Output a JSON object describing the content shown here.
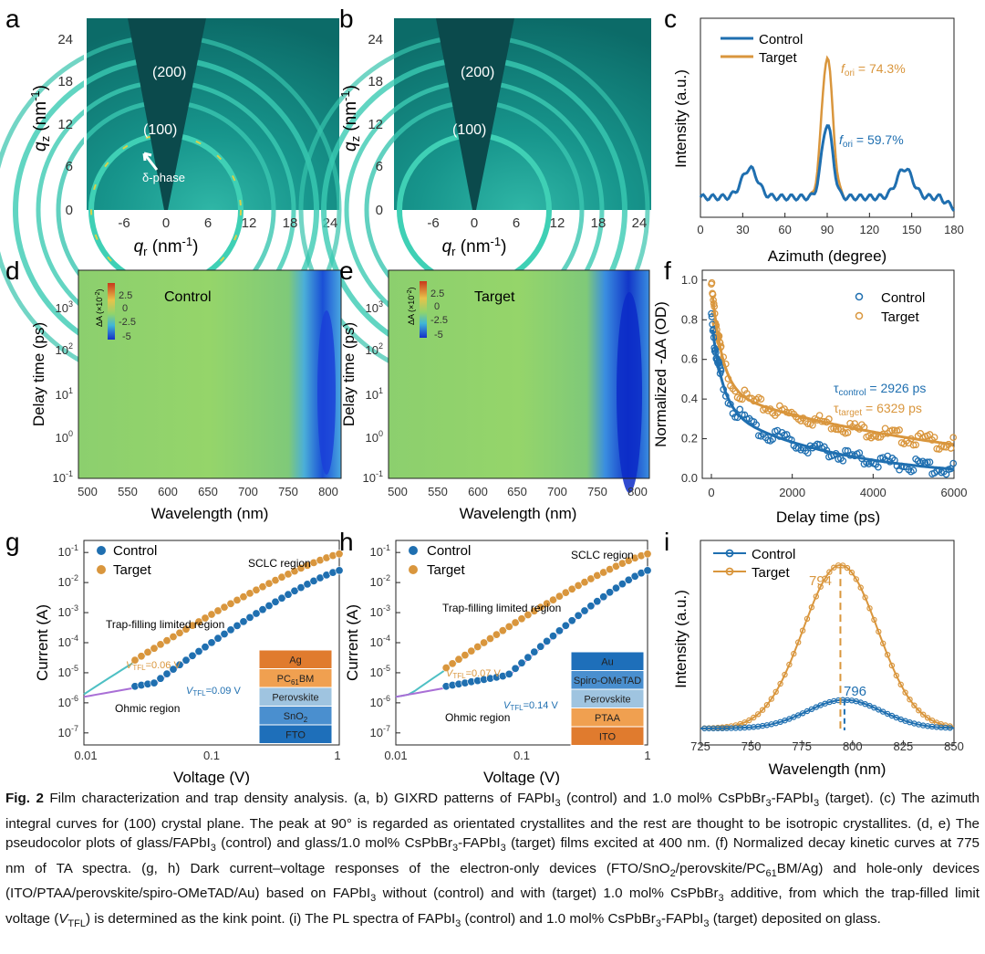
{
  "panels": {
    "a": {
      "label": "a",
      "ring_200": "(200)",
      "ring_100": "(100)",
      "delta_phase": "δ-phase",
      "y_ticks": [
        "0",
        "6",
        "12",
        "18",
        "24"
      ],
      "x_ticks": [
        "-6",
        "0",
        "6",
        "12",
        "18",
        "24"
      ],
      "ylabel_q": "q",
      "ylabel_sub": "z",
      "ylabel_unit": " (nm",
      "xlabel_q": "q",
      "xlabel_sub": "r",
      "xlabel_unit": " (nm"
    },
    "b": {
      "label": "b",
      "ring_200": "(200)",
      "ring_100": "(100)",
      "y_ticks": [
        "0",
        "6",
        "12",
        "18",
        "24"
      ],
      "x_ticks": [
        "-6",
        "0",
        "6",
        "12",
        "18",
        "24"
      ]
    },
    "d": {
      "label": "d",
      "legend": "Control",
      "ylabel": "Delay time (ps)",
      "xlabel": "Wavelength (nm)",
      "y_ticks": [
        "10",
        "10",
        "10",
        "10",
        "10"
      ],
      "y_exps": [
        "-1",
        "0",
        "1",
        "2",
        "3"
      ],
      "x_ticks": [
        "500",
        "550",
        "600",
        "650",
        "700",
        "750",
        "800"
      ],
      "colorbar_ticks": [
        "2.5",
        "0",
        "-2.5",
        "-5"
      ],
      "colorbar_label": "ΔA (×10",
      "colorbar_exp": "-2",
      "colorbar_close": ")"
    },
    "e": {
      "label": "e",
      "legend": "Target",
      "ylabel": "Delay time (ps)",
      "xlabel": "Wavelength (nm)"
    },
    "i": {
      "label": "i"
    }
  },
  "chart_data": [
    {
      "panel": "c",
      "type": "line",
      "title": "",
      "xlabel": "Azimuth (degree)",
      "ylabel": "Intensity (a.u.)",
      "xlim": [
        0,
        180
      ],
      "x_ticks": [
        0,
        30,
        60,
        90,
        120,
        150,
        180
      ],
      "series": [
        {
          "name": "Control",
          "color": "#1f6fb0",
          "peak": 0.52
        },
        {
          "name": "Target",
          "color": "#d9963d",
          "peak": 1.0
        }
      ],
      "annotations": [
        {
          "text": "f",
          "sub": "ori",
          "value": " = 74.3%",
          "color": "#d9963d"
        },
        {
          "text": "f",
          "sub": "ori",
          "value": " = 59.7%",
          "color": "#1f6fb0"
        }
      ]
    },
    {
      "panel": "f",
      "type": "scatter",
      "xlabel": "Delay time (ps)",
      "ylabel": "Normalized -ΔA (OD)",
      "xlim": [
        0,
        6000
      ],
      "ylim": [
        0,
        1.05
      ],
      "x_ticks": [
        0,
        2000,
        4000,
        6000
      ],
      "y_ticks": [
        "0.0",
        "0.2",
        "0.4",
        "0.6",
        "0.8",
        "1.0"
      ],
      "series": [
        {
          "name": "Control",
          "color": "#1f6fb0",
          "tau_ps": 2926
        },
        {
          "name": "Target",
          "color": "#d9963d",
          "tau_ps": 6329
        }
      ],
      "annotations": [
        {
          "text": "τ",
          "sub": "control",
          "value": " = 2926 ps",
          "color": "#1f6fb0"
        },
        {
          "text": "τ",
          "sub": "target",
          "value": " = 6329 ps",
          "color": "#d9963d"
        }
      ]
    },
    {
      "panel": "g",
      "type": "scatter",
      "xlabel": "Voltage (V)",
      "ylabel": "Current (A)",
      "xscale": "log",
      "yscale": "log",
      "x_ticks": [
        "0.01",
        "0.1",
        "1"
      ],
      "y_exps": [
        "-7",
        "-6",
        "-5",
        "-4",
        "-3",
        "-2",
        "-1"
      ],
      "series": [
        {
          "name": "Control",
          "color": "#1f6fb0"
        },
        {
          "name": "Target",
          "color": "#d9963d"
        }
      ],
      "regions": [
        "SCLC region",
        "Trap-filling limited region",
        "Ohmic region"
      ],
      "vtfl": [
        {
          "value": "=0.06 V",
          "color": "#d9963d"
        },
        {
          "value": "=0.09 V",
          "color": "#1f6fb0"
        }
      ],
      "device_layers": [
        {
          "name": "Ag",
          "color": "#e07b2e"
        },
        {
          "name": "PC61BM",
          "color": "#f0a050"
        },
        {
          "name": "Perovskite",
          "color": "#9fc4e0"
        },
        {
          "name": "SnO2",
          "color": "#4a8fcf"
        },
        {
          "name": "FTO",
          "color": "#1e6fba"
        }
      ]
    },
    {
      "panel": "h",
      "type": "scatter",
      "xlabel": "Voltage (V)",
      "ylabel": "Current (A)",
      "xscale": "log",
      "yscale": "log",
      "x_ticks": [
        "0.01",
        "0.1",
        "1"
      ],
      "y_exps": [
        "-7",
        "-6",
        "-5",
        "-4",
        "-3",
        "-2",
        "-1"
      ],
      "series": [
        {
          "name": "Control",
          "color": "#1f6fb0"
        },
        {
          "name": "Target",
          "color": "#d9963d"
        }
      ],
      "regions": [
        "SCLC region",
        "Trap-filling limited region",
        "Ohmic region"
      ],
      "vtfl": [
        {
          "value": "=0.07 V",
          "color": "#d9963d"
        },
        {
          "value": "=0.14 V",
          "color": "#1f6fb0"
        }
      ],
      "device_layers": [
        {
          "name": "Au",
          "color": "#1e6fba"
        },
        {
          "name": "Spiro-OMeTAD",
          "color": "#4a8fcf"
        },
        {
          "name": "Perovskite",
          "color": "#9fc4e0"
        },
        {
          "name": "PTAA",
          "color": "#f0a050"
        },
        {
          "name": "ITO",
          "color": "#e07b2e"
        }
      ]
    },
    {
      "panel": "i",
      "type": "line",
      "xlabel": "Wavelength (nm)",
      "ylabel": "Intensity (a.u.)",
      "xlim": [
        725,
        850
      ],
      "x_ticks": [
        725,
        750,
        775,
        800,
        825,
        850
      ],
      "series": [
        {
          "name": "Control",
          "color": "#1f6fb0",
          "peak_nm": 796,
          "peak_rel": 0.15
        },
        {
          "name": "Target",
          "color": "#d9963d",
          "peak_nm": 794,
          "peak_rel": 0.86
        }
      ],
      "peak_labels": [
        "794",
        "796"
      ]
    }
  ],
  "caption": {
    "fig": "Fig. 2",
    "parts": [
      " Film characterization and trap density analysis. (a, b) GIXRD patterns of FAPbI",
      "3",
      " (control) and 1.0 mol% CsPbBr",
      "3",
      "-FAPbI",
      "3",
      " (target). (c) The azimuth integral curves for (100) crystal plane. The peak at 90° is regarded as orientated crystallites and the rest are thought to be isotropic crystallites. (d, e) The pseudocolor plots of glass/FAPbI",
      "3",
      " (control) and glass/1.0 mol% CsPbBr",
      "3",
      "-FAPbI",
      "3",
      " (target) films excited at 400 nm. (f) Normalized decay kinetic curves at 775 nm of TA spectra. (g, h) Dark current–voltage responses of the electron-only devices (FTO/SnO",
      "2",
      "/perovskite/PC",
      "61",
      "BM/Ag) and hole-only devices (ITO/PTAA/perovskite/spiro-OMeTAD/Au) based on FAPbI",
      "3",
      " without (control) and with (target) 1.0 mol% CsPbBr",
      "3",
      " additive, from which the trap-filled limit voltage (",
      "V",
      "TFL",
      ") is determined as the kink point. (i) The PL spectra of FAPbI",
      "3",
      " (control) and 1.0 mol% CsPbBr",
      "3",
      "-FAPbI",
      "3",
      " (target) deposited on glass."
    ]
  }
}
